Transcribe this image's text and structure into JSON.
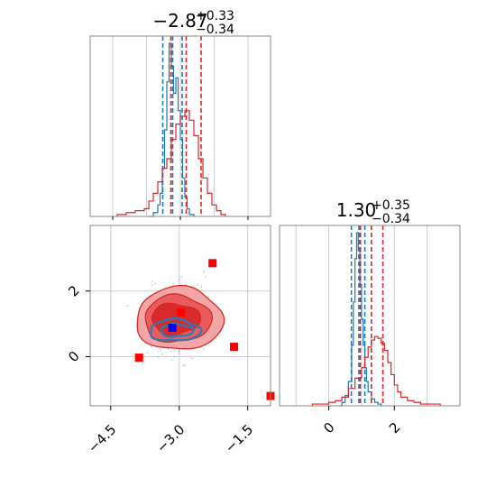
{
  "chart_data": [
    {
      "type": "histogram",
      "title": {
        "value": "−2.87",
        "sup": "+0.33",
        "sub": "−0.34"
      },
      "xlim": [
        -5.0,
        -1.0
      ],
      "grid": true,
      "series": [
        {
          "name": "",
          "color": "#1f77b4",
          "bins": [
            -3.7,
            -3.6,
            -3.5,
            -3.45,
            -3.4,
            -3.35,
            -3.3,
            -3.25,
            -3.2,
            -3.15,
            -3.1,
            -3.05,
            -3.0,
            -2.95,
            -2.9,
            -2.85,
            -2.8,
            -2.7
          ],
          "counts": [
            0,
            2,
            6,
            12,
            25,
            45,
            70,
            90,
            78,
            64,
            72,
            55,
            40,
            20,
            10,
            4,
            1,
            0
          ],
          "quantiles": [
            -3.39,
            -3.17,
            -2.96
          ]
        },
        {
          "name": "",
          "color": "#d62728",
          "bins": [
            -4.4,
            -4.2,
            -4.0,
            -3.8,
            -3.7,
            -3.6,
            -3.5,
            -3.4,
            -3.3,
            -3.2,
            -3.1,
            -3.0,
            -2.9,
            -2.8,
            -2.7,
            -2.6,
            -2.5,
            -2.4,
            -2.3,
            -2.2,
            -2.1,
            -2.0
          ],
          "counts": [
            1,
            2,
            3,
            4,
            8,
            12,
            18,
            25,
            30,
            40,
            48,
            52,
            55,
            50,
            42,
            30,
            20,
            12,
            6,
            3,
            1,
            0
          ],
          "quantiles": [
            -3.21,
            -2.87,
            -2.54
          ]
        }
      ]
    },
    {
      "type": "scatter",
      "xlim": [
        -4.95,
        -1.0
      ],
      "ylim": [
        -1.5,
        4.0
      ],
      "xticks": [
        "−4.5",
        "−3.0",
        "−1.5"
      ],
      "xtick_values": [
        -4.5,
        -3.0,
        -1.5
      ],
      "yticks": [
        "0",
        "2"
      ],
      "ytick_values": [
        0,
        2
      ],
      "grid": true,
      "red_markers": [
        {
          "x": -2.27,
          "y": 2.85
        },
        {
          "x": -2.96,
          "y": 1.35
        },
        {
          "x": -3.88,
          "y": -0.03
        },
        {
          "x": -1.8,
          "y": 0.3
        },
        {
          "x": -1.0,
          "y": -1.2
        }
      ],
      "blue_markers": [
        {
          "x": -3.15,
          "y": 0.88
        }
      ],
      "contours": {
        "red_center": {
          "x": -3.0,
          "y": 1.15
        },
        "blue_center": {
          "x": -3.1,
          "y": 0.8
        }
      }
    },
    {
      "type": "histogram",
      "title": {
        "value": "1.30",
        "sup": "+0.35",
        "sub": "−0.34"
      },
      "xlim": [
        -1.5,
        4.0
      ],
      "xticks": [
        "0",
        "2"
      ],
      "xtick_values": [
        0,
        2
      ],
      "grid": true,
      "series": [
        {
          "name": "",
          "color": "#1f77b4",
          "bins": [
            0.3,
            0.4,
            0.5,
            0.6,
            0.7,
            0.75,
            0.8,
            0.85,
            0.9,
            0.95,
            1.0,
            1.05,
            1.1,
            1.15,
            1.2,
            1.3,
            1.4,
            1.5,
            1.6
          ],
          "counts": [
            0,
            2,
            6,
            14,
            35,
            60,
            85,
            100,
            90,
            70,
            50,
            35,
            22,
            14,
            8,
            4,
            2,
            1,
            0
          ],
          "quantiles": [
            0.69,
            0.92,
            1.1
          ]
        },
        {
          "name": "",
          "color": "#d62728",
          "bins": [
            -0.5,
            -0.2,
            0.0,
            0.2,
            0.4,
            0.6,
            0.8,
            1.0,
            1.1,
            1.2,
            1.3,
            1.4,
            1.5,
            1.6,
            1.7,
            1.8,
            1.9,
            2.0,
            2.1,
            2.2,
            2.4,
            2.6,
            2.8,
            3.0,
            3.2,
            3.4
          ],
          "counts": [
            1,
            1,
            2,
            3,
            5,
            10,
            16,
            22,
            28,
            34,
            38,
            40,
            39,
            36,
            32,
            25,
            18,
            12,
            8,
            5,
            3,
            2,
            1,
            1,
            1,
            0
          ],
          "quantiles": [
            0.96,
            1.3,
            1.65
          ]
        }
      ]
    }
  ]
}
